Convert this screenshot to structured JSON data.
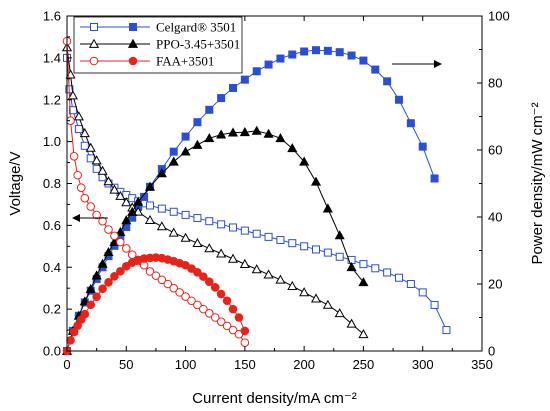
{
  "chart_data": {
    "type": "line",
    "xlabel": "Current density/mA cm⁻²",
    "ylabel_left": "Voltage/V",
    "ylabel_right": "Power density/mW cm⁻²",
    "xlim": [
      0,
      350
    ],
    "ylim_left": [
      0,
      1.6
    ],
    "ylim_right": [
      0,
      100
    ],
    "x_ticks": [
      0,
      50,
      100,
      150,
      200,
      250,
      300,
      350
    ],
    "y_left_ticks": [
      0.0,
      0.2,
      0.4,
      0.6,
      0.8,
      1.0,
      1.2,
      1.4,
      1.6
    ],
    "y_right_ticks": [
      0,
      20,
      40,
      60,
      80,
      100
    ],
    "legend_position": "top-left",
    "grid": false,
    "arrows": [
      {
        "points_to": "left-axis"
      },
      {
        "points_to": "right-axis"
      }
    ],
    "series": [
      {
        "name": "Celgard® 3501",
        "color": "#2a4fd6",
        "polarization": {
          "x": [
            0,
            2,
            5,
            10,
            15,
            20,
            25,
            30,
            35,
            40,
            45,
            50,
            55,
            60,
            65,
            70,
            80,
            90,
            100,
            110,
            120,
            130,
            140,
            150,
            160,
            170,
            180,
            190,
            200,
            210,
            220,
            230,
            240,
            250,
            260,
            270,
            280,
            290,
            300,
            310,
            320
          ],
          "y": [
            1.4,
            1.25,
            1.15,
            1.06,
            0.98,
            0.92,
            0.87,
            0.83,
            0.8,
            0.78,
            0.76,
            0.745,
            0.73,
            0.715,
            0.705,
            0.695,
            0.68,
            0.665,
            0.65,
            0.635,
            0.62,
            0.605,
            0.59,
            0.575,
            0.56,
            0.545,
            0.53,
            0.515,
            0.5,
            0.485,
            0.47,
            0.45,
            0.435,
            0.415,
            0.395,
            0.375,
            0.35,
            0.32,
            0.28,
            0.22,
            0.1
          ]
        },
        "power": {
          "x": [
            0,
            5,
            10,
            15,
            20,
            25,
            30,
            35,
            40,
            45,
            50,
            55,
            60,
            65,
            70,
            80,
            90,
            100,
            110,
            120,
            130,
            140,
            150,
            160,
            170,
            180,
            190,
            200,
            210,
            220,
            230,
            240,
            250,
            260,
            270,
            280,
            290,
            300,
            310
          ],
          "y": [
            0,
            6,
            10.5,
            14.5,
            18,
            21.5,
            25,
            28.3,
            31.4,
            34.3,
            37,
            39.8,
            43,
            46,
            49,
            54.3,
            59.5,
            64,
            68.3,
            72,
            75.5,
            78.5,
            81,
            83.5,
            85.5,
            87.3,
            88.5,
            89.4,
            89.8,
            89.6,
            89.2,
            88.2,
            86.7,
            84,
            80.5,
            75,
            68,
            61,
            51.5
          ]
        }
      },
      {
        "name": "PPO-3.45+3501",
        "color": "#000000",
        "polarization": {
          "x": [
            0,
            3,
            5,
            10,
            15,
            20,
            25,
            30,
            35,
            40,
            45,
            50,
            55,
            60,
            70,
            80,
            90,
            100,
            110,
            120,
            130,
            140,
            150,
            160,
            170,
            180,
            190,
            200,
            210,
            220,
            230,
            240,
            250
          ],
          "y": [
            1.45,
            1.32,
            1.22,
            1.12,
            1.04,
            0.97,
            0.91,
            0.86,
            0.81,
            0.77,
            0.74,
            0.71,
            0.685,
            0.665,
            0.625,
            0.595,
            0.565,
            0.54,
            0.515,
            0.49,
            0.465,
            0.44,
            0.415,
            0.39,
            0.365,
            0.34,
            0.31,
            0.28,
            0.25,
            0.22,
            0.18,
            0.13,
            0.08
          ]
        },
        "power": {
          "x": [
            0,
            5,
            10,
            15,
            20,
            25,
            30,
            35,
            40,
            45,
            50,
            55,
            60,
            70,
            80,
            90,
            100,
            110,
            120,
            130,
            140,
            150,
            160,
            170,
            180,
            190,
            200,
            210,
            220,
            230,
            240,
            250
          ],
          "y": [
            0,
            6,
            10.5,
            14.8,
            18.5,
            22.5,
            26,
            29.5,
            32.5,
            35.5,
            39,
            41.5,
            44.5,
            49,
            53,
            56.5,
            59.5,
            61.5,
            63.5,
            64.6,
            65.2,
            65.3,
            65.7,
            64.8,
            63.5,
            60.5,
            56.5,
            50.5,
            42.5,
            34.5,
            25,
            20.5
          ]
        }
      },
      {
        "name": "FAA+3501",
        "color": "#e8231a",
        "polarization": {
          "x": [
            0,
            3,
            6,
            9,
            12,
            15,
            20,
            25,
            30,
            35,
            40,
            45,
            50,
            55,
            60,
            65,
            70,
            75,
            80,
            85,
            90,
            95,
            100,
            105,
            110,
            115,
            120,
            125,
            130,
            135,
            140,
            145,
            150
          ],
          "y": [
            1.48,
            1.1,
            0.93,
            0.84,
            0.78,
            0.73,
            0.69,
            0.65,
            0.62,
            0.58,
            0.55,
            0.52,
            0.49,
            0.46,
            0.43,
            0.41,
            0.38,
            0.36,
            0.34,
            0.32,
            0.3,
            0.28,
            0.26,
            0.24,
            0.22,
            0.2,
            0.18,
            0.16,
            0.14,
            0.12,
            0.1,
            0.08,
            0.04
          ]
        },
        "power": {
          "x": [
            0,
            3,
            6,
            9,
            12,
            15,
            20,
            25,
            30,
            35,
            40,
            45,
            50,
            55,
            60,
            65,
            70,
            75,
            80,
            85,
            90,
            95,
            100,
            105,
            110,
            115,
            120,
            125,
            130,
            135,
            140,
            145,
            150
          ],
          "y": [
            0,
            3.2,
            5.7,
            7.6,
            9.4,
            11,
            13.8,
            16.2,
            18.6,
            20.5,
            22.3,
            23.8,
            25.3,
            26.4,
            27.2,
            27.6,
            27.8,
            27.9,
            27.7,
            27.3,
            26.8,
            26.2,
            25.6,
            24.6,
            23.5,
            22.2,
            20.7,
            19,
            17,
            15,
            12.5,
            10,
            6
          ]
        }
      }
    ]
  }
}
